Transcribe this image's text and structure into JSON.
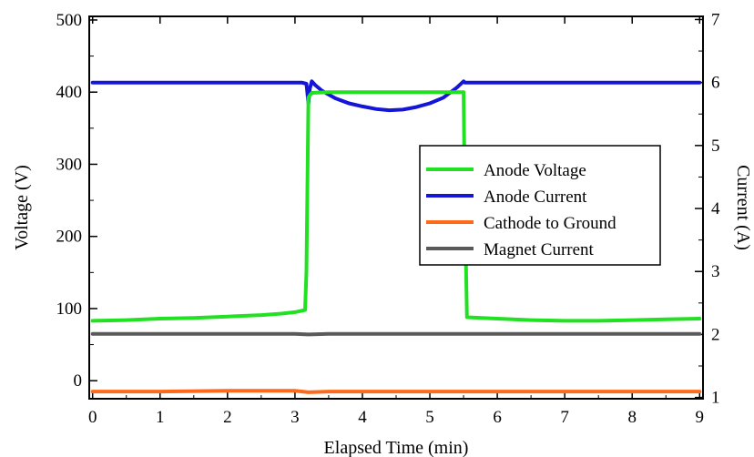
{
  "chart_data": {
    "type": "line",
    "xlabel": "Elapsed Time (min)",
    "ylabel": "Voltage (V)",
    "y2label": "Current (A)",
    "xlim": [
      -0.05,
      9.05
    ],
    "ylim": [
      -25,
      505
    ],
    "y2lim": [
      0.98,
      7.05
    ],
    "x_ticks": [
      "0",
      "1",
      "2",
      "3",
      "4",
      "5",
      "6",
      "7",
      "8",
      "9"
    ],
    "y_ticks": [
      "0",
      "100",
      "200",
      "300",
      "400",
      "500"
    ],
    "y2_ticks": [
      "1",
      "2",
      "3",
      "4",
      "5",
      "6",
      "7"
    ],
    "grid": false,
    "legend_position": "right-center",
    "series": [
      {
        "name": "Anode Voltage",
        "axis": "left",
        "color": "#22e022",
        "x": [
          0,
          0.5,
          1.0,
          1.5,
          2.0,
          2.5,
          2.8,
          3.0,
          3.1,
          3.15,
          3.17,
          3.2,
          3.25,
          3.5,
          4.0,
          4.5,
          5.0,
          5.3,
          5.5,
          5.52,
          5.55,
          6.0,
          6.5,
          7.0,
          7.5,
          8.0,
          8.5,
          9.0
        ],
        "y": [
          83,
          84,
          86,
          87,
          89,
          91,
          93,
          95,
          97,
          98,
          150,
          393,
          399,
          400,
          400,
          400,
          400,
          400,
          400,
          240,
          88,
          86,
          84,
          83,
          83,
          84,
          85,
          86
        ]
      },
      {
        "name": "Anode Current",
        "axis": "right",
        "color": "#1515d8",
        "x": [
          0,
          1,
          2,
          3,
          3.1,
          3.17,
          3.2,
          3.22,
          3.25,
          3.3,
          3.4,
          3.6,
          3.8,
          4.0,
          4.2,
          4.4,
          4.6,
          4.8,
          5.0,
          5.2,
          5.4,
          5.5,
          5.52,
          6,
          7,
          8,
          9
        ],
        "y": [
          6.0,
          6.0,
          6.0,
          6.0,
          6.0,
          5.98,
          5.67,
          5.9,
          6.02,
          5.96,
          5.87,
          5.75,
          5.67,
          5.62,
          5.58,
          5.56,
          5.57,
          5.61,
          5.67,
          5.76,
          5.92,
          6.02,
          6.0,
          6.0,
          6.0,
          6.0,
          6.0
        ]
      },
      {
        "name": "Cathode to Ground",
        "axis": "left",
        "color": "#ff6a1a",
        "x": [
          0,
          1,
          2,
          3,
          3.2,
          3.5,
          4,
          5,
          5.5,
          6,
          7,
          8,
          9
        ],
        "y": [
          -15,
          -15,
          -14,
          -14,
          -16,
          -15,
          -15,
          -15,
          -15,
          -15,
          -15,
          -15,
          -15
        ]
      },
      {
        "name": "Magnet Current",
        "axis": "right",
        "color": "#5a5a5a",
        "x": [
          0,
          1,
          2,
          3,
          3.2,
          3.5,
          4,
          5,
          6,
          7,
          8,
          9
        ],
        "y": [
          2.01,
          2.01,
          2.01,
          2.01,
          2.0,
          2.01,
          2.01,
          2.01,
          2.01,
          2.01,
          2.01,
          2.01
        ]
      }
    ]
  }
}
